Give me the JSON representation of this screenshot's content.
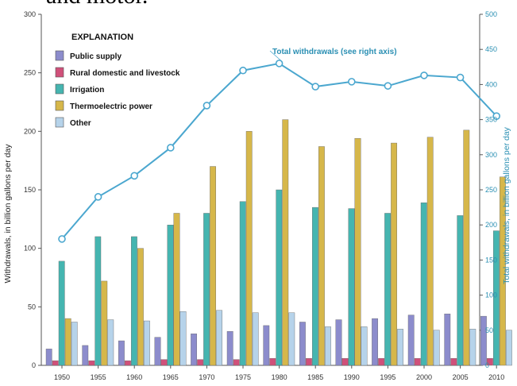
{
  "heading_fragment": "and motor.",
  "chart_data": {
    "type": "bar",
    "categories": [
      "1950",
      "1955",
      "1960",
      "1965",
      "1970",
      "1975",
      "1980",
      "1985",
      "1990",
      "1995",
      "2000",
      "2005",
      "2010"
    ],
    "ylabel": "Withdrawals, in billion gallons per day",
    "ylabel_right": "Total withdrawals, in billion gallons per day",
    "ylim": [
      0,
      300
    ],
    "ylim_right": [
      0,
      500
    ],
    "yticks": [
      "0",
      "50",
      "100",
      "150",
      "200",
      "250",
      "300"
    ],
    "yticks_right": [
      "0",
      "50",
      "100",
      "150",
      "200",
      "250",
      "300",
      "350",
      "400",
      "450",
      "500"
    ],
    "legend_title": "EXPLANATION",
    "legend_position": "top-left",
    "series": [
      {
        "name": "Public supply",
        "color": "#8c8ccc",
        "values": [
          14,
          17,
          21,
          24,
          27,
          29,
          34,
          37,
          39,
          40,
          43,
          44,
          42
        ]
      },
      {
        "name": "Rural domestic and livestock",
        "color": "#d0507a",
        "values": [
          4,
          4,
          4,
          5,
          5,
          5,
          6,
          6,
          6,
          6,
          6,
          6,
          6
        ]
      },
      {
        "name": "Irrigation",
        "color": "#45b5b0",
        "values": [
          89,
          110,
          110,
          120,
          130,
          140,
          150,
          135,
          134,
          130,
          139,
          128,
          115
        ]
      },
      {
        "name": "Thermoelectric power",
        "color": "#d6b74a",
        "values": [
          40,
          72,
          100,
          130,
          170,
          200,
          210,
          187,
          194,
          190,
          195,
          201,
          161
        ]
      },
      {
        "name": "Other",
        "color": "#b6d3ea",
        "values": [
          37,
          39,
          38,
          46,
          47,
          45,
          45,
          33,
          33,
          31,
          30,
          31,
          30
        ]
      }
    ],
    "line_series": {
      "name": "Total withdrawals (see right axis)",
      "color": "#4ba7cf",
      "axis": "right",
      "values": [
        180,
        240,
        270,
        310,
        370,
        420,
        430,
        397,
        404,
        398,
        413,
        410,
        355
      ]
    }
  }
}
